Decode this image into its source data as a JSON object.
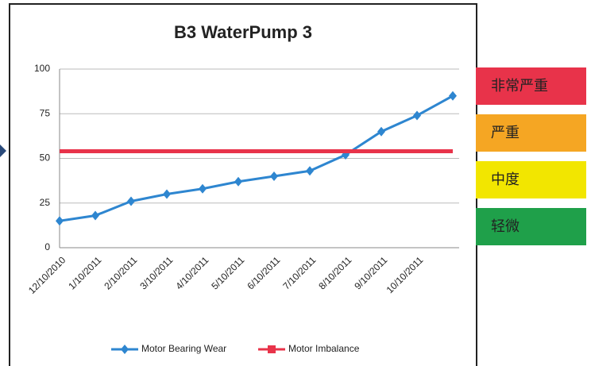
{
  "chart_data": {
    "type": "line",
    "title": "B3 WaterPump 3",
    "categories": [
      "12/10/2010",
      "1/10/2011",
      "2/10/2011",
      "3/10/2011",
      "4/10/2011",
      "5/10/2011",
      "6/10/2011",
      "7/10/2011",
      "8/10/2011",
      "9/10/2011",
      "10/10/2011",
      null
    ],
    "series": [
      {
        "name": "Motor Bearing Wear",
        "color": "#2e86d0",
        "values": [
          15,
          18,
          26,
          30,
          33,
          37,
          40,
          43,
          52,
          65,
          74,
          85
        ]
      },
      {
        "name": "Motor Imbalance",
        "color": "#e8334a",
        "values": [
          54,
          54,
          54,
          54,
          54,
          54,
          54,
          54,
          54,
          54,
          54,
          54
        ]
      }
    ],
    "ylim": [
      0,
      100
    ],
    "yticks": [
      0,
      25,
      50,
      75,
      100
    ],
    "grid": true,
    "legend": "bottom"
  },
  "severity_levels": [
    {
      "label": "非常严重",
      "color": "#e8334a"
    },
    {
      "label": "严重",
      "color": "#f5a623"
    },
    {
      "label": "中度",
      "color": "#f2e600"
    },
    {
      "label": "轻微",
      "color": "#1fa04a"
    }
  ]
}
